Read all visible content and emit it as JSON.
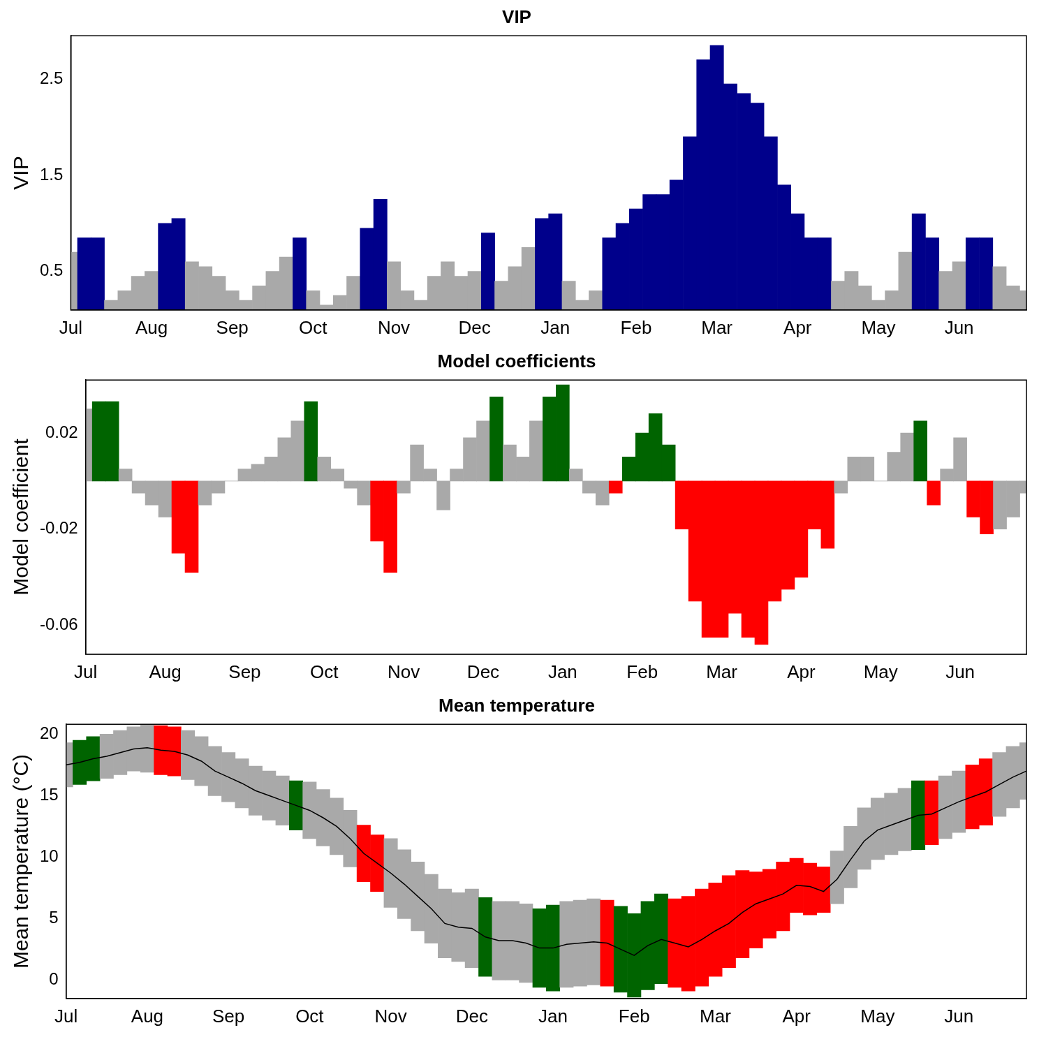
{
  "chart_data": [
    {
      "type": "bar",
      "title": "VIP",
      "y_label": "VIP",
      "categories": [
        "Jul",
        null,
        null,
        null,
        null,
        null,
        "Aug",
        null,
        null,
        null,
        null,
        null,
        "Sep",
        null,
        null,
        null,
        null,
        null,
        "Oct",
        null,
        null,
        null,
        null,
        null,
        "Nov",
        null,
        null,
        null,
        null,
        null,
        "Dec",
        null,
        null,
        null,
        null,
        null,
        "Jan",
        null,
        null,
        null,
        null,
        null,
        "Feb",
        null,
        null,
        null,
        null,
        null,
        "Mar",
        null,
        null,
        null,
        null,
        null,
        "Apr",
        null,
        null,
        null,
        null,
        null,
        "May",
        null,
        null,
        null,
        null,
        null,
        "Jun",
        null,
        null,
        null,
        null,
        null
      ],
      "values": [
        0.7,
        0.85,
        0.85,
        0.2,
        0.3,
        0.45,
        0.5,
        1.0,
        1.05,
        0.6,
        0.55,
        0.45,
        0.3,
        0.2,
        0.35,
        0.5,
        0.65,
        0.85,
        0.3,
        0.15,
        0.25,
        0.45,
        0.95,
        1.25,
        0.6,
        0.3,
        0.2,
        0.45,
        0.6,
        0.45,
        0.5,
        0.9,
        0.4,
        0.55,
        0.75,
        1.05,
        1.1,
        0.4,
        0.2,
        0.3,
        0.85,
        1.0,
        1.15,
        1.3,
        1.3,
        1.45,
        1.9,
        2.7,
        2.85,
        2.45,
        2.35,
        2.25,
        1.9,
        1.4,
        1.1,
        0.85,
        0.85,
        0.4,
        0.5,
        0.35,
        0.2,
        0.3,
        0.7,
        1.1,
        0.85,
        0.5,
        0.6,
        0.85,
        0.85,
        0.55,
        0.35,
        0.3
      ],
      "colors": [
        "#a9a9a9",
        "#00008b",
        "#00008b",
        "#a9a9a9",
        "#a9a9a9",
        "#a9a9a9",
        "#a9a9a9",
        "#00008b",
        "#00008b",
        "#a9a9a9",
        "#a9a9a9",
        "#a9a9a9",
        "#a9a9a9",
        "#a9a9a9",
        "#a9a9a9",
        "#a9a9a9",
        "#a9a9a9",
        "#00008b",
        "#a9a9a9",
        "#a9a9a9",
        "#a9a9a9",
        "#a9a9a9",
        "#00008b",
        "#00008b",
        "#a9a9a9",
        "#a9a9a9",
        "#a9a9a9",
        "#a9a9a9",
        "#a9a9a9",
        "#a9a9a9",
        "#a9a9a9",
        "#00008b",
        "#a9a9a9",
        "#a9a9a9",
        "#a9a9a9",
        "#00008b",
        "#00008b",
        "#a9a9a9",
        "#a9a9a9",
        "#a9a9a9",
        "#00008b",
        "#00008b",
        "#00008b",
        "#00008b",
        "#00008b",
        "#00008b",
        "#00008b",
        "#00008b",
        "#00008b",
        "#00008b",
        "#00008b",
        "#00008b",
        "#00008b",
        "#00008b",
        "#00008b",
        "#00008b",
        "#00008b",
        "#a9a9a9",
        "#a9a9a9",
        "#a9a9a9",
        "#a9a9a9",
        "#a9a9a9",
        "#a9a9a9",
        "#00008b",
        "#00008b",
        "#a9a9a9",
        "#a9a9a9",
        "#00008b",
        "#00008b",
        "#a9a9a9",
        "#a9a9a9",
        "#a9a9a9"
      ],
      "ylim": [
        0.1,
        2.95
      ],
      "yticks": [
        0.5,
        1.5,
        2.5
      ],
      "grid": false
    },
    {
      "type": "bar",
      "title": "Model coefficients",
      "y_label": "Model coefficient",
      "categories": [
        "Jul",
        null,
        null,
        null,
        null,
        null,
        "Aug",
        null,
        null,
        null,
        null,
        null,
        "Sep",
        null,
        null,
        null,
        null,
        null,
        "Oct",
        null,
        null,
        null,
        null,
        null,
        "Nov",
        null,
        null,
        null,
        null,
        null,
        "Dec",
        null,
        null,
        null,
        null,
        null,
        "Jan",
        null,
        null,
        null,
        null,
        null,
        "Feb",
        null,
        null,
        null,
        null,
        null,
        "Mar",
        null,
        null,
        null,
        null,
        null,
        "Apr",
        null,
        null,
        null,
        null,
        null,
        "May",
        null,
        null,
        null,
        null,
        null,
        "Jun",
        null,
        null,
        null,
        null,
        null
      ],
      "values": [
        0.03,
        0.033,
        0.033,
        0.005,
        -0.005,
        -0.01,
        -0.015,
        -0.03,
        -0.038,
        -0.01,
        -0.005,
        0.0,
        0.005,
        0.007,
        0.01,
        0.018,
        0.025,
        0.033,
        0.01,
        0.005,
        -0.003,
        -0.01,
        -0.025,
        -0.038,
        -0.005,
        0.015,
        0.005,
        -0.012,
        0.005,
        0.018,
        0.025,
        0.035,
        0.015,
        0.01,
        0.025,
        0.035,
        0.04,
        0.005,
        -0.005,
        -0.01,
        -0.005,
        0.01,
        0.02,
        0.028,
        0.015,
        -0.02,
        -0.05,
        -0.065,
        -0.065,
        -0.055,
        -0.065,
        -0.068,
        -0.05,
        -0.045,
        -0.04,
        -0.02,
        -0.028,
        -0.005,
        0.01,
        0.01,
        0.0,
        0.012,
        0.02,
        0.025,
        -0.01,
        0.005,
        0.018,
        -0.015,
        -0.022,
        -0.02,
        -0.015,
        -0.005
      ],
      "colors": [
        "#a9a9a9",
        "#006400",
        "#006400",
        "#a9a9a9",
        "#a9a9a9",
        "#a9a9a9",
        "#a9a9a9",
        "#ff0000",
        "#ff0000",
        "#a9a9a9",
        "#a9a9a9",
        "#a9a9a9",
        "#a9a9a9",
        "#a9a9a9",
        "#a9a9a9",
        "#a9a9a9",
        "#a9a9a9",
        "#006400",
        "#a9a9a9",
        "#a9a9a9",
        "#a9a9a9",
        "#a9a9a9",
        "#ff0000",
        "#ff0000",
        "#a9a9a9",
        "#a9a9a9",
        "#a9a9a9",
        "#a9a9a9",
        "#a9a9a9",
        "#a9a9a9",
        "#a9a9a9",
        "#006400",
        "#a9a9a9",
        "#a9a9a9",
        "#a9a9a9",
        "#006400",
        "#006400",
        "#a9a9a9",
        "#a9a9a9",
        "#a9a9a9",
        "#ff0000",
        "#006400",
        "#006400",
        "#006400",
        "#006400",
        "#ff0000",
        "#ff0000",
        "#ff0000",
        "#ff0000",
        "#ff0000",
        "#ff0000",
        "#ff0000",
        "#ff0000",
        "#ff0000",
        "#ff0000",
        "#ff0000",
        "#ff0000",
        "#a9a9a9",
        "#a9a9a9",
        "#a9a9a9",
        "#a9a9a9",
        "#a9a9a9",
        "#a9a9a9",
        "#006400",
        "#ff0000",
        "#a9a9a9",
        "#a9a9a9",
        "#ff0000",
        "#ff0000",
        "#a9a9a9",
        "#a9a9a9",
        "#a9a9a9"
      ],
      "ylim": [
        -0.072,
        0.042
      ],
      "yticks": [
        -0.06,
        -0.02,
        0.02
      ],
      "grid": false
    },
    {
      "type": "line",
      "title": "Mean temperature",
      "y_label": "Mean temperature (°C)",
      "categories": [
        "Jul",
        null,
        null,
        null,
        null,
        null,
        "Aug",
        null,
        null,
        null,
        null,
        null,
        "Sep",
        null,
        null,
        null,
        null,
        null,
        "Oct",
        null,
        null,
        null,
        null,
        null,
        "Nov",
        null,
        null,
        null,
        null,
        null,
        "Dec",
        null,
        null,
        null,
        null,
        null,
        "Jan",
        null,
        null,
        null,
        null,
        null,
        "Feb",
        null,
        null,
        null,
        null,
        null,
        "Mar",
        null,
        null,
        null,
        null,
        null,
        "Apr",
        null,
        null,
        null,
        null,
        null,
        "May",
        null,
        null,
        null,
        null,
        null,
        "Jun",
        null,
        null,
        null,
        null,
        null
      ],
      "values": [
        17.5,
        17.7,
        18.0,
        18.2,
        18.5,
        18.8,
        18.9,
        18.7,
        18.6,
        18.3,
        17.8,
        17.0,
        16.5,
        16.0,
        15.4,
        15.0,
        14.6,
        14.2,
        13.8,
        13.2,
        12.5,
        11.5,
        10.3,
        9.5,
        8.7,
        7.8,
        6.8,
        5.8,
        4.6,
        4.3,
        4.2,
        3.5,
        3.2,
        3.2,
        3.0,
        2.6,
        2.6,
        2.9,
        3.0,
        3.1,
        3.0,
        2.5,
        2.0,
        2.8,
        3.3,
        3.0,
        2.7,
        3.3,
        4.0,
        4.6,
        5.5,
        6.2,
        6.6,
        7.0,
        7.7,
        7.6,
        7.2,
        8.2,
        9.8,
        11.3,
        12.2,
        12.6,
        13.0,
        13.4,
        13.5,
        14.0,
        14.5,
        14.9,
        15.3,
        15.9,
        16.5,
        17.0
      ],
      "color": "#000000",
      "band": {
        "low": [
          15.7,
          15.9,
          16.2,
          16.4,
          16.7,
          17.0,
          16.9,
          16.7,
          16.6,
          16.3,
          15.8,
          15.0,
          14.5,
          14.0,
          13.4,
          13.0,
          12.6,
          12.2,
          11.5,
          10.9,
          10.2,
          9.2,
          8.0,
          7.2,
          5.9,
          5.0,
          4.0,
          3.0,
          1.8,
          1.5,
          1.0,
          0.3,
          0.0,
          0.0,
          -0.2,
          -0.6,
          -0.9,
          -0.6,
          -0.5,
          -0.4,
          -0.5,
          -1.0,
          -1.4,
          -0.8,
          -0.3,
          -0.6,
          -0.9,
          -0.5,
          0.3,
          1.0,
          1.8,
          2.6,
          3.4,
          4.0,
          5.5,
          5.3,
          5.5,
          6.2,
          7.5,
          9.0,
          9.8,
          10.2,
          10.5,
          10.6,
          11.0,
          11.5,
          12.0,
          12.3,
          12.6,
          13.3,
          14.0,
          14.7
        ],
        "high": [
          19.3,
          19.5,
          19.8,
          20.0,
          20.3,
          20.6,
          20.9,
          20.7,
          20.6,
          20.3,
          19.8,
          19.0,
          18.5,
          18.0,
          17.4,
          17.0,
          16.6,
          16.2,
          16.1,
          15.5,
          14.8,
          13.8,
          12.6,
          11.8,
          11.5,
          10.6,
          9.6,
          8.6,
          7.4,
          7.1,
          7.4,
          6.7,
          6.4,
          6.4,
          6.2,
          5.8,
          6.1,
          6.4,
          6.5,
          6.6,
          6.5,
          6.0,
          5.4,
          6.4,
          7.0,
          6.6,
          6.8,
          7.4,
          7.9,
          8.5,
          8.9,
          8.8,
          9.0,
          9.6,
          9.9,
          9.5,
          9.2,
          10.5,
          12.5,
          14.0,
          14.8,
          15.2,
          15.6,
          16.2,
          16.2,
          16.6,
          17.0,
          17.5,
          18.0,
          18.5,
          19.0,
          19.3
        ],
        "colors": [
          "#a9a9a9",
          "#006400",
          "#006400",
          "#a9a9a9",
          "#a9a9a9",
          "#a9a9a9",
          "#a9a9a9",
          "#ff0000",
          "#ff0000",
          "#a9a9a9",
          "#a9a9a9",
          "#a9a9a9",
          "#a9a9a9",
          "#a9a9a9",
          "#a9a9a9",
          "#a9a9a9",
          "#a9a9a9",
          "#006400",
          "#a9a9a9",
          "#a9a9a9",
          "#a9a9a9",
          "#a9a9a9",
          "#ff0000",
          "#ff0000",
          "#a9a9a9",
          "#a9a9a9",
          "#a9a9a9",
          "#a9a9a9",
          "#a9a9a9",
          "#a9a9a9",
          "#a9a9a9",
          "#006400",
          "#a9a9a9",
          "#a9a9a9",
          "#a9a9a9",
          "#006400",
          "#006400",
          "#a9a9a9",
          "#a9a9a9",
          "#a9a9a9",
          "#ff0000",
          "#006400",
          "#006400",
          "#006400",
          "#006400",
          "#ff0000",
          "#ff0000",
          "#ff0000",
          "#ff0000",
          "#ff0000",
          "#ff0000",
          "#ff0000",
          "#ff0000",
          "#ff0000",
          "#ff0000",
          "#ff0000",
          "#ff0000",
          "#a9a9a9",
          "#a9a9a9",
          "#a9a9a9",
          "#a9a9a9",
          "#a9a9a9",
          "#a9a9a9",
          "#006400",
          "#ff0000",
          "#a9a9a9",
          "#a9a9a9",
          "#ff0000",
          "#ff0000",
          "#a9a9a9",
          "#a9a9a9",
          "#a9a9a9"
        ]
      },
      "ylim": [
        -1.5,
        20.8
      ],
      "yticks": [
        0,
        5,
        10,
        15,
        20
      ],
      "grid": false
    }
  ]
}
